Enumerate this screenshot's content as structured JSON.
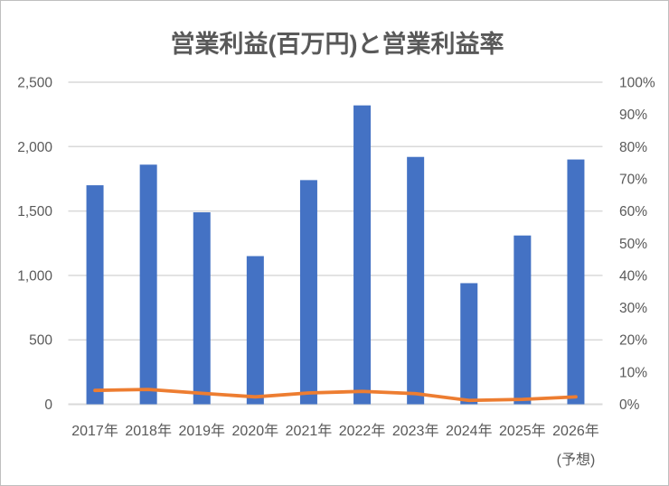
{
  "frame": {
    "background": "#FFFFFF",
    "border_color": "#BFBFBF"
  },
  "chart_data": {
    "type": "combo-bar-line",
    "title": "営業利益(百万円)と営業利益率",
    "categories": [
      "2017年",
      "2018年",
      "2019年",
      "2020年",
      "2021年",
      "2022年",
      "2023年",
      "2024年",
      "2025年",
      "2026年"
    ],
    "last_category_note": "(予想)",
    "series": [
      {
        "name": "営業利益(百万円)",
        "type": "bar",
        "axis": "left",
        "color": "#4472C4",
        "values": [
          1700,
          1860,
          1490,
          1150,
          1740,
          2320,
          1920,
          940,
          1310,
          1900
        ]
      },
      {
        "name": "営業利益率",
        "type": "line",
        "axis": "right",
        "color": "#ED7D31",
        "unit": "%",
        "values": [
          4.3,
          4.6,
          3.4,
          2.3,
          3.5,
          4.0,
          3.3,
          1.2,
          1.5,
          2.3
        ]
      }
    ],
    "left_axis": {
      "min": 0,
      "max": 2500,
      "step": 500,
      "tick_labels": [
        "0",
        "500",
        "1,000",
        "1,500",
        "2,000",
        "2,500"
      ]
    },
    "right_axis": {
      "min": 0,
      "max": 100,
      "step": 10,
      "tick_labels": [
        "0%",
        "10%",
        "20%",
        "30%",
        "40%",
        "50%",
        "60%",
        "70%",
        "80%",
        "90%",
        "100%"
      ]
    },
    "grid": true,
    "legend": false,
    "colors": {
      "grid": "#D9D9D9",
      "axis_text": "#595959",
      "title_text": "#595959"
    }
  }
}
